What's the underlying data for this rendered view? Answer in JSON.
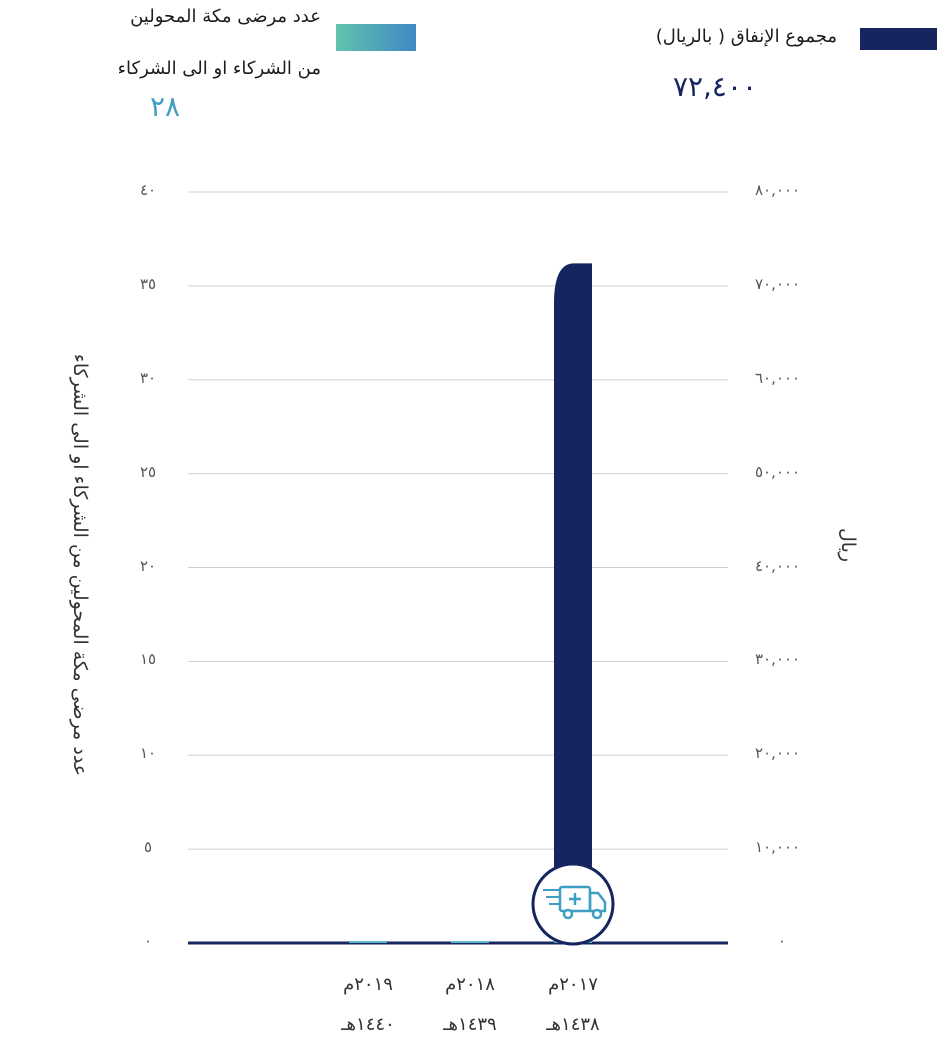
{
  "legend": {
    "spending": {
      "label": "مجموع الإنفاق ( بالريال)",
      "value": "٧٢,٤٠٠",
      "color": "#16255f"
    },
    "patients": {
      "label_line1": "عدد مرضى مكة المحولين",
      "label_line2": "من الشركاء او الى الشركاء",
      "value": "٢٨",
      "color_from": "#62c3ac",
      "color_to": "#3f88c4"
    }
  },
  "axes": {
    "left_title": "عدد مرضى مكة المحولين من الشركاء او الى الشركاء",
    "right_title": "ريال",
    "left_ticks": [
      "٠",
      "٥",
      "١٠",
      "١٥",
      "٢٠",
      "٢٥",
      "٣٠",
      "٣٥",
      "٤٠"
    ],
    "right_ticks": [
      "٠",
      "١٠,٠٠٠",
      "٢٠,٠٠٠",
      "٣٠,٠٠٠",
      "٤٠,٠٠٠",
      "٥٠,٠٠٠",
      "٦٠,٠٠٠",
      "٧٠,٠٠٠",
      "٨٠,٠٠٠"
    ]
  },
  "categories": [
    {
      "gregorian": "٢٠١٩م",
      "hijri": "١٤٤٠هـ"
    },
    {
      "gregorian": "٢٠١٨م",
      "hijri": "١٤٣٩هـ"
    },
    {
      "gregorian": "٢٠١٧م",
      "hijri": "١٤٣٨هـ"
    }
  ],
  "icons": {
    "truck": "ambulance-truck-icon"
  },
  "chart_data": {
    "type": "bar",
    "categories": [
      "٢٠١٩م ١٤٤٠هـ",
      "٢٠١٨م ١٤٣٩هـ",
      "٢٠١٧م ١٤٣٨هـ"
    ],
    "series": [
      {
        "name": "مجموع الإنفاق ( بالريال)",
        "axis": "right",
        "values": [
          0,
          0,
          72400
        ]
      },
      {
        "name": "عدد مرضى مكة المحولين من الشركاء او الى الشركاء",
        "axis": "left",
        "values": [
          0,
          0,
          28
        ]
      }
    ],
    "ylim_left": [
      0,
      40
    ],
    "ylim_right": [
      0,
      80000
    ],
    "ylabel_left": "عدد مرضى مكة المحولين من الشركاء او الى الشركاء",
    "ylabel_right": "ريال",
    "grid": true
  }
}
